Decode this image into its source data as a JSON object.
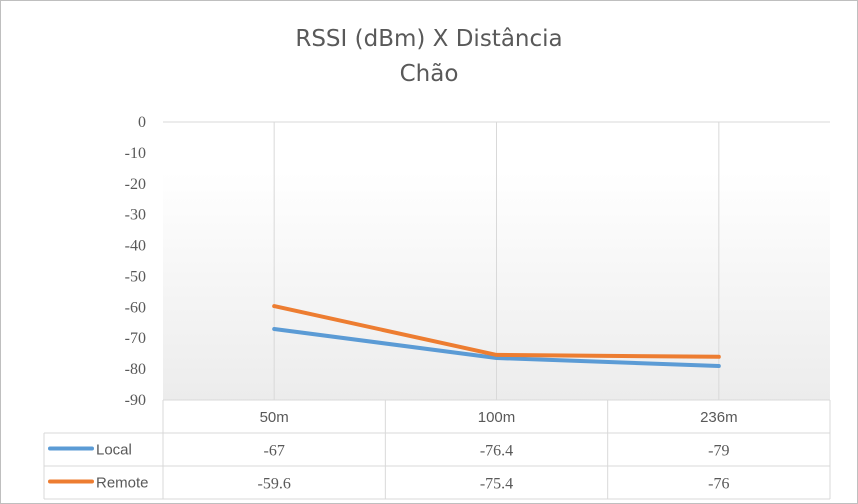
{
  "chart_data": {
    "type": "line",
    "title": "RSSI (dBm) X Distância",
    "subtitle": "Chão",
    "categories": [
      "50m",
      "100m",
      "236m"
    ],
    "series": [
      {
        "name": "Local",
        "values": [
          -67,
          -76.4,
          -79
        ],
        "labels": [
          "-67",
          "-76.4",
          "-79"
        ],
        "color": "#5b9bd5"
      },
      {
        "name": "Remote",
        "values": [
          -59.6,
          -75.4,
          -76
        ],
        "labels": [
          "-59.6",
          "-75.4",
          "-76"
        ],
        "color": "#ed7d31"
      }
    ],
    "ylim": [
      -90,
      0
    ],
    "yticks": [
      "0",
      "-10",
      "-20",
      "-30",
      "-40",
      "-50",
      "-60",
      "-70",
      "-80",
      "-90"
    ],
    "grid": "vertical",
    "data_table": true,
    "legend": "data-table"
  }
}
